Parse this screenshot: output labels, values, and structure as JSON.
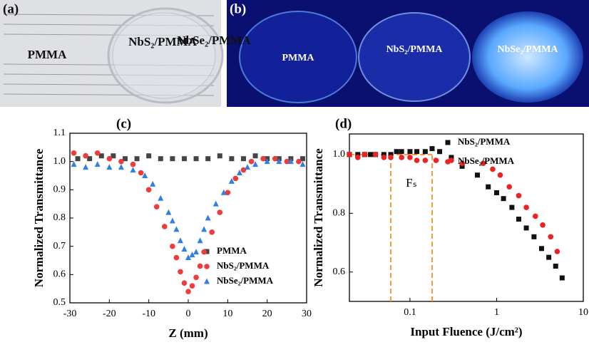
{
  "panels": [
    {
      "label": "(a)",
      "samples": [
        "PMMA",
        "NbS₂/PMMA",
        "NbSe₂/PMMA"
      ]
    },
    {
      "label": "(b)",
      "samples": [
        "PMMA",
        "NbS₂/PMMA",
        "NbSe₂/PMMA"
      ]
    }
  ],
  "chart_data": [
    {
      "type": "scatter",
      "label": "(c)",
      "x_label": "Z (mm)",
      "y_label": "Normalized Transmittance",
      "xlim": [
        -30,
        30
      ],
      "xticks": [
        -30,
        -20,
        -10,
        0,
        10,
        20,
        30
      ],
      "ylim": [
        0.5,
        1.1
      ],
      "yticks": [
        0.5,
        0.6,
        0.7,
        0.8,
        0.9,
        {
          "value": 1,
          "label": "1.0"
        },
        1.1
      ],
      "legend": "lower-right",
      "series": [
        {
          "name": "PMMA",
          "color": "#444444",
          "marker": "square",
          "x": [
            -28,
            -25,
            -22,
            -19,
            -16,
            -13,
            -10,
            -7,
            -4,
            -1,
            2,
            5,
            8,
            11,
            14,
            17,
            20,
            23,
            26,
            29
          ],
          "values": [
            1.01,
            1.01,
            1.02,
            1.02,
            1.01,
            1.01,
            1.02,
            1.01,
            1.01,
            1.01,
            1.01,
            1.01,
            1.02,
            1.01,
            1.01,
            1.02,
            1.01,
            1.01,
            1.01,
            1.01
          ]
        },
        {
          "name": "NbS₂/PMMA",
          "color": "#ee3b3b",
          "marker": "circle",
          "x": [
            -29,
            -26,
            -23,
            -20,
            -17,
            -14,
            -12,
            -10,
            -8,
            -6,
            -4,
            -3,
            -2,
            -1,
            0,
            1,
            2,
            3,
            4,
            6,
            8,
            10,
            12,
            14,
            16,
            19,
            22,
            25,
            28
          ],
          "values": [
            1.03,
            1.02,
            1.03,
            1.01,
            1.0,
            0.99,
            0.96,
            0.9,
            0.84,
            0.77,
            0.7,
            0.66,
            0.61,
            0.57,
            0.54,
            0.56,
            0.59,
            0.63,
            0.68,
            0.75,
            0.82,
            0.89,
            0.94,
            0.97,
            1.0,
            1.01,
            1.01,
            1.0,
            1.0
          ]
        },
        {
          "name": "NbSe₂/PMMA",
          "color": "#2f7fe6",
          "marker": "triangle",
          "x": [
            -29,
            -26,
            -23,
            -20,
            -17,
            -14,
            -11,
            -9,
            -7,
            -5,
            -4,
            -3,
            -2,
            -1,
            0,
            1,
            2,
            3,
            4,
            5,
            7,
            9,
            11,
            13,
            15,
            17,
            20,
            23,
            26,
            29
          ],
          "values": [
            0.99,
            0.98,
            0.99,
            0.98,
            0.98,
            0.97,
            0.95,
            0.92,
            0.87,
            0.82,
            0.79,
            0.76,
            0.72,
            0.69,
            0.66,
            0.67,
            0.68,
            0.72,
            0.76,
            0.8,
            0.85,
            0.89,
            0.93,
            0.96,
            0.98,
            0.99,
            1.0,
            1.0,
            1.0,
            0.99
          ]
        }
      ]
    },
    {
      "type": "scatter",
      "label": "(d)",
      "x_label": "Input Fluence (J/cm²)",
      "y_label": "Normalized Transmittance",
      "log_x": true,
      "xlim": [
        0.02,
        10
      ],
      "xticks": [
        0.1,
        1,
        10
      ],
      "ylim": [
        0.5,
        1.07
      ],
      "yticks": [
        0.6,
        0.8,
        {
          "value": 1,
          "label": "1.0"
        }
      ],
      "legend": "upper-right",
      "annotation": "Fₛ",
      "threshold_x": [
        0.06,
        0.18
      ],
      "threshold_y": 1,
      "series": [
        {
          "name": "NbS₂/PMMA",
          "color": "#111111",
          "marker": "square",
          "x": [
            0.02,
            0.025,
            0.03,
            0.035,
            0.04,
            0.05,
            0.06,
            0.07,
            0.08,
            0.1,
            0.12,
            0.15,
            0.18,
            0.22,
            0.3,
            0.4,
            0.6,
            0.8,
            1.0,
            1.2,
            1.5,
            1.8,
            2.2,
            2.7,
            3.3,
            4.0,
            4.8,
            5.7
          ],
          "values": [
            1.0,
            1.0,
            1.0,
            1.0,
            1.0,
            1.0,
            1.0,
            1.01,
            1.01,
            1.01,
            1.01,
            1.01,
            1.02,
            1.01,
            0.99,
            0.96,
            0.93,
            0.89,
            0.87,
            0.85,
            0.82,
            0.78,
            0.75,
            0.72,
            0.68,
            0.65,
            0.62,
            0.58
          ]
        },
        {
          "name": "NbSe₂/PMMA",
          "color": "#ee2222",
          "marker": "circle",
          "x": [
            0.02,
            0.025,
            0.03,
            0.04,
            0.05,
            0.06,
            0.08,
            0.1,
            0.12,
            0.15,
            0.2,
            0.3,
            0.4,
            0.7,
            0.9,
            1.1,
            1.4,
            1.8,
            2.2,
            2.8,
            3.4,
            4.2,
            5.0
          ],
          "values": [
            1.0,
            0.99,
            1.0,
            1.0,
            0.99,
            0.99,
            0.99,
            0.99,
            0.98,
            0.98,
            0.98,
            0.98,
            0.97,
            0.97,
            0.95,
            0.93,
            0.89,
            0.86,
            0.82,
            0.79,
            0.76,
            0.72,
            0.67
          ]
        }
      ]
    }
  ]
}
